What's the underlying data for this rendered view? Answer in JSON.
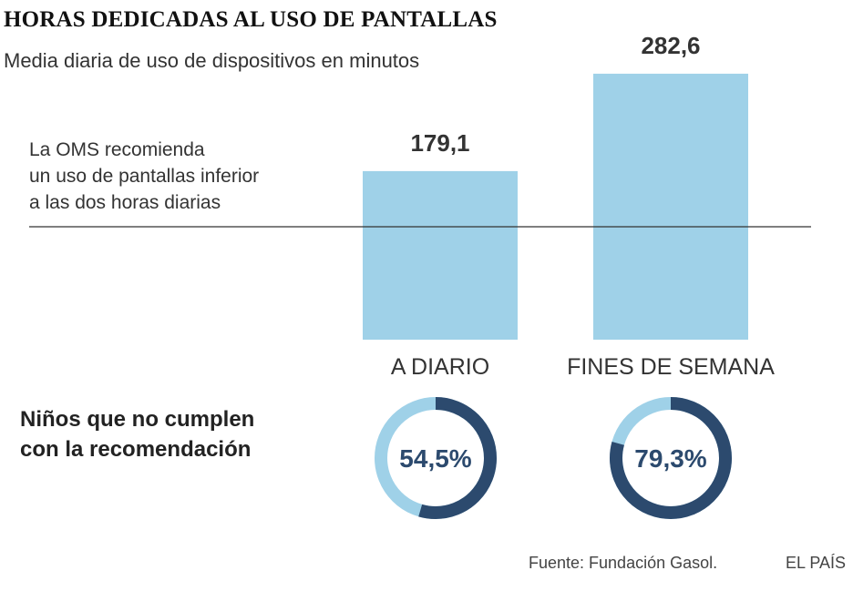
{
  "chart_data": {
    "type": "bar",
    "title": "HORAS DEDICADAS AL USO DE PANTALLAS",
    "subtitle": "Media diaria de uso de dispositivos en minutos",
    "categories": [
      "A DIARIO",
      "FINES DE SEMANA"
    ],
    "values": [
      179.1,
      282.6
    ],
    "value_labels": [
      "179,1",
      "282,6"
    ],
    "reference_line": {
      "value": 120,
      "label": "La OMS recomienda un uso de pantallas inferior a las dos horas diarias",
      "label_lines": [
        "La OMS recomienda",
        "un uso de pantallas inferior",
        "a las dos horas diarias"
      ]
    },
    "ylim": [
      0,
      300
    ],
    "grid": false,
    "bar_color": "#9fd1e8",
    "donuts": {
      "label_lines": [
        "Niños que no cumplen",
        "con la recomendación"
      ],
      "items": [
        {
          "category": "A DIARIO",
          "value": 54.5,
          "label": "54,5%"
        },
        {
          "category": "FINES DE SEMANA",
          "value": 79.3,
          "label": "79,3%"
        }
      ],
      "fill_color": "#2c4a6e",
      "rest_color": "#9fd1e8"
    }
  },
  "footer": {
    "source": "Fuente: Fundación Gasol.",
    "brand": "EL PAÍS"
  }
}
